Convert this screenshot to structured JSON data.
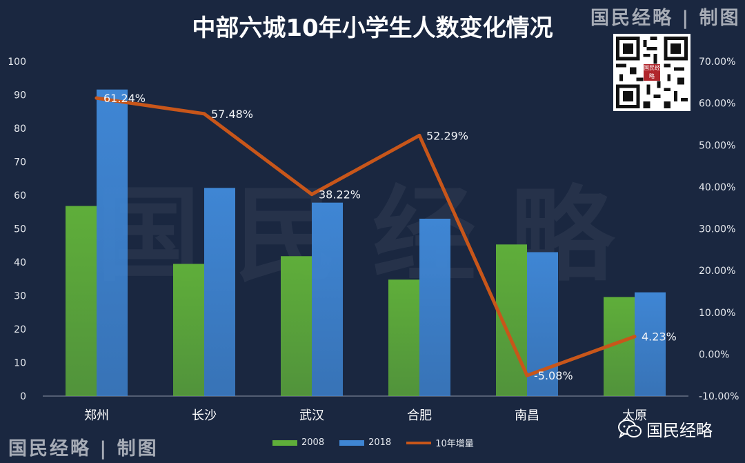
{
  "watermark": {
    "big_text": "国民经略",
    "credit_top": "国民经略 | 制图",
    "credit_bottom": "国民经略 | 制图",
    "wechat_label": "国民经略",
    "qr_badge_text": "国民经略",
    "icons": {
      "qr": "qr-code-icon",
      "wechat": "wechat-icon"
    }
  },
  "chart_data": {
    "type": "bar",
    "title": "中部六城10年小学生人数变化情况",
    "categories": [
      "郑州",
      "长沙",
      "武汉",
      "合肥",
      "南昌",
      "太原"
    ],
    "series": [
      {
        "name": "2008",
        "kind": "bar",
        "axis": "left",
        "color": "#5fae3a",
        "values": [
          56.8,
          39.5,
          41.8,
          34.8,
          45.3,
          29.6
        ]
      },
      {
        "name": "2018",
        "kind": "bar",
        "axis": "left",
        "color": "#3f86d4",
        "values": [
          91.6,
          62.2,
          57.8,
          53.0,
          43.0,
          31.0
        ]
      },
      {
        "name": "10年增量",
        "kind": "line",
        "axis": "right",
        "color": "#c8561a",
        "values": [
          61.24,
          57.48,
          38.22,
          52.29,
          -5.08,
          4.23
        ],
        "labels": [
          "61.24%",
          "57.48%",
          "38.22%",
          "52.29%",
          "-5.08%",
          "4.23%"
        ]
      }
    ],
    "y_left": {
      "min": 0,
      "max": 100,
      "ticks": [
        "0",
        "10",
        "20",
        "30",
        "40",
        "50",
        "60",
        "70",
        "80",
        "90",
        "100"
      ]
    },
    "y_right": {
      "min": -10,
      "max": 70,
      "ticks": [
        "-10.00%",
        "0.00%",
        "10.00%",
        "20.00%",
        "30.00%",
        "40.00%",
        "50.00%",
        "60.00%",
        "70.00%"
      ]
    },
    "grid": false,
    "legend_position": "bottom"
  }
}
